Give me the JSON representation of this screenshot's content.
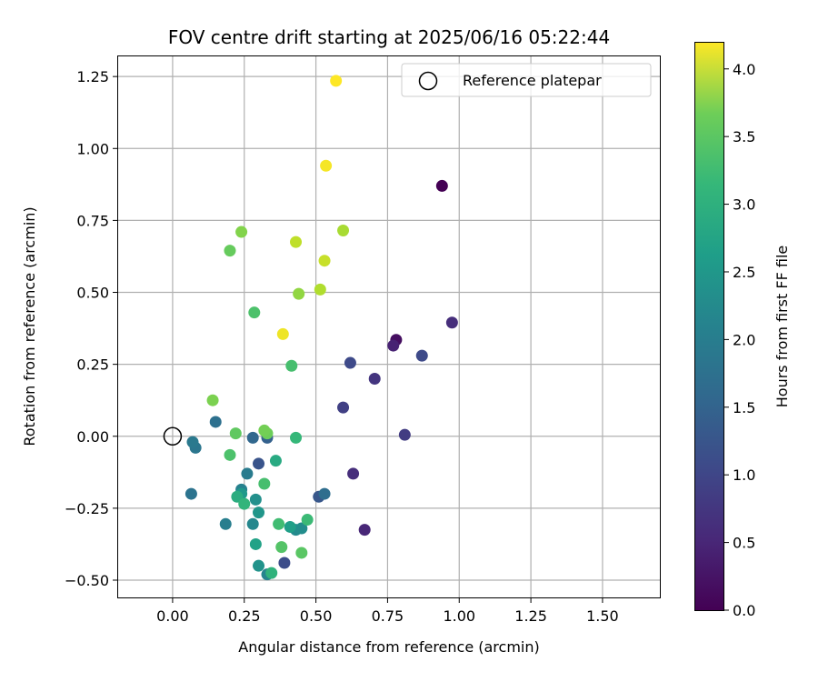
{
  "chart_data": {
    "type": "scatter",
    "title": "FOV centre drift starting at 2025/06/16 05:22:44",
    "xlabel": "Angular distance from reference (arcmin)",
    "ylabel": "Rotation from reference (arcmin)",
    "xlim": [
      -0.19,
      1.7
    ],
    "ylim": [
      -0.56,
      1.32
    ],
    "x_ticks": [
      "0.00",
      "0.25",
      "0.50",
      "0.75",
      "1.00",
      "1.25",
      "1.50"
    ],
    "x_tick_values": [
      0,
      0.25,
      0.5,
      0.75,
      1.0,
      1.25,
      1.5
    ],
    "y_ticks": [
      "−0.50",
      "−0.25",
      "0.00",
      "0.25",
      "0.50",
      "0.75",
      "1.00",
      "1.25"
    ],
    "y_tick_values": [
      -0.5,
      -0.25,
      0,
      0.25,
      0.5,
      0.75,
      1.0,
      1.25
    ],
    "grid": true,
    "legend": {
      "placement": "top-right",
      "entries": [
        "Reference platepar"
      ]
    },
    "reference_point": {
      "x": 0,
      "y": 0,
      "label": "Reference platepar"
    },
    "colorbar": {
      "label": "Hours from first FF file",
      "min": 0,
      "max": 4.2,
      "colormap": "viridis",
      "ticks": [
        "0.0",
        "0.5",
        "1.0",
        "1.5",
        "2.0",
        "2.5",
        "3.0",
        "3.5",
        "4.0"
      ],
      "tick_values": [
        0,
        0.5,
        1.0,
        1.5,
        2.0,
        2.5,
        3.0,
        3.5,
        4.0
      ]
    },
    "points": [
      {
        "x": 0.94,
        "y": 0.87,
        "c": 0.0
      },
      {
        "x": 0.78,
        "y": 0.335,
        "c": 0.15
      },
      {
        "x": 0.77,
        "y": 0.315,
        "c": 0.4
      },
      {
        "x": 0.67,
        "y": -0.325,
        "c": 0.45
      },
      {
        "x": 0.975,
        "y": 0.395,
        "c": 0.55
      },
      {
        "x": 0.63,
        "y": -0.13,
        "c": 0.55
      },
      {
        "x": 0.705,
        "y": 0.2,
        "c": 0.65
      },
      {
        "x": 0.81,
        "y": 0.005,
        "c": 0.75
      },
      {
        "x": 0.595,
        "y": 0.1,
        "c": 0.8
      },
      {
        "x": 0.87,
        "y": 0.28,
        "c": 0.95
      },
      {
        "x": 0.62,
        "y": 0.255,
        "c": 0.95
      },
      {
        "x": 0.39,
        "y": -0.44,
        "c": 1.0
      },
      {
        "x": 0.3,
        "y": -0.095,
        "c": 1.1
      },
      {
        "x": 0.51,
        "y": -0.21,
        "c": 1.15
      },
      {
        "x": 0.33,
        "y": -0.005,
        "c": 1.3
      },
      {
        "x": 0.28,
        "y": -0.005,
        "c": 1.4
      },
      {
        "x": 0.53,
        "y": -0.2,
        "c": 1.5
      },
      {
        "x": 0.15,
        "y": 0.05,
        "c": 1.55
      },
      {
        "x": 0.065,
        "y": -0.2,
        "c": 1.6
      },
      {
        "x": 0.08,
        "y": -0.04,
        "c": 1.65
      },
      {
        "x": 0.07,
        "y": -0.02,
        "c": 1.7
      },
      {
        "x": 0.26,
        "y": -0.13,
        "c": 1.75
      },
      {
        "x": 0.185,
        "y": -0.305,
        "c": 1.8
      },
      {
        "x": 0.24,
        "y": -0.185,
        "c": 1.85
      },
      {
        "x": 0.33,
        "y": -0.48,
        "c": 1.9
      },
      {
        "x": 0.28,
        "y": -0.305,
        "c": 1.95
      },
      {
        "x": 0.43,
        "y": -0.325,
        "c": 2.0
      },
      {
        "x": 0.45,
        "y": -0.32,
        "c": 2.05
      },
      {
        "x": 0.29,
        "y": -0.22,
        "c": 2.1
      },
      {
        "x": 0.3,
        "y": -0.45,
        "c": 2.15
      },
      {
        "x": 0.3,
        "y": -0.265,
        "c": 2.2
      },
      {
        "x": 0.24,
        "y": -0.2,
        "c": 2.25
      },
      {
        "x": 0.41,
        "y": -0.315,
        "c": 2.35
      },
      {
        "x": 0.29,
        "y": -0.375,
        "c": 2.4
      },
      {
        "x": 0.36,
        "y": -0.085,
        "c": 2.55
      },
      {
        "x": 0.225,
        "y": -0.21,
        "c": 2.6
      },
      {
        "x": 0.345,
        "y": -0.475,
        "c": 2.7
      },
      {
        "x": 0.25,
        "y": -0.235,
        "c": 2.75
      },
      {
        "x": 0.43,
        "y": -0.005,
        "c": 2.8
      },
      {
        "x": 0.47,
        "y": -0.29,
        "c": 2.85
      },
      {
        "x": 0.37,
        "y": -0.305,
        "c": 2.9
      },
      {
        "x": 0.32,
        "y": -0.165,
        "c": 2.95
      },
      {
        "x": 0.415,
        "y": 0.245,
        "c": 2.95
      },
      {
        "x": 0.285,
        "y": 0.43,
        "c": 3.0
      },
      {
        "x": 0.2,
        "y": -0.065,
        "c": 3.0
      },
      {
        "x": 0.38,
        "y": -0.385,
        "c": 3.05
      },
      {
        "x": 0.45,
        "y": -0.405,
        "c": 3.1
      },
      {
        "x": 0.22,
        "y": 0.01,
        "c": 3.15
      },
      {
        "x": 0.2,
        "y": 0.645,
        "c": 3.2
      },
      {
        "x": 0.33,
        "y": 0.01,
        "c": 3.25
      },
      {
        "x": 0.32,
        "y": 0.02,
        "c": 3.3
      },
      {
        "x": 0.14,
        "y": 0.125,
        "c": 3.35
      },
      {
        "x": 0.24,
        "y": 0.71,
        "c": 3.4
      },
      {
        "x": 0.44,
        "y": 0.495,
        "c": 3.5
      },
      {
        "x": 0.595,
        "y": 0.715,
        "c": 3.65
      },
      {
        "x": 0.515,
        "y": 0.51,
        "c": 3.7
      },
      {
        "x": 0.43,
        "y": 0.675,
        "c": 3.8
      },
      {
        "x": 0.53,
        "y": 0.61,
        "c": 3.85
      },
      {
        "x": 0.385,
        "y": 0.355,
        "c": 4.1
      },
      {
        "x": 0.535,
        "y": 0.94,
        "c": 4.15
      },
      {
        "x": 0.57,
        "y": 1.235,
        "c": 4.2
      }
    ]
  }
}
